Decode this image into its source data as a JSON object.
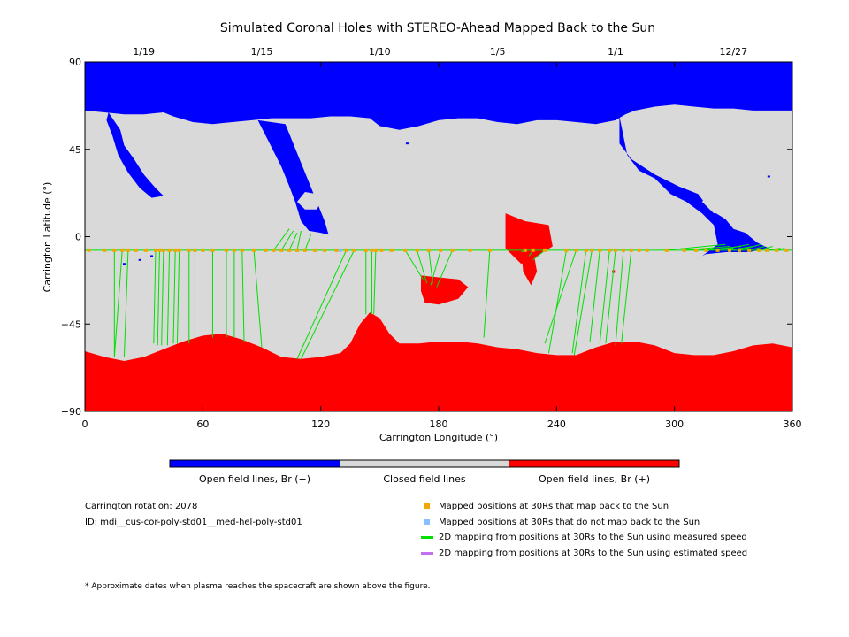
{
  "chart_data": {
    "type": "map",
    "title": "Simulated Coronal Holes with STEREO-Ahead Mapped Back to the Sun",
    "xlabel": "Carrington Longitude (°)",
    "ylabel": "Carrington Latitude (°)",
    "xlim": [
      0,
      360
    ],
    "ylim": [
      -90,
      90
    ],
    "x_ticks": [
      "0",
      "60",
      "120",
      "180",
      "240",
      "300",
      "360"
    ],
    "y_ticks": [
      "90",
      "45",
      "0",
      "−45",
      "−90"
    ],
    "top_axis": {
      "labels": [
        {
          "text": "1/19",
          "lon": 30
        },
        {
          "text": "1/15",
          "lon": 90
        },
        {
          "text": "1/10",
          "lon": 150
        },
        {
          "text": "1/5",
          "lon": 210
        },
        {
          "text": "1/1",
          "lon": 270
        },
        {
          "text": "12/27",
          "lon": 330
        }
      ]
    },
    "colors": {
      "open_negative": "#0000ff",
      "closed": "#d9d9d9",
      "open_positive": "#ff0000",
      "mapped_yes": "#f0a800",
      "mapped_no": "#87bfff",
      "measured_line": "#00e000",
      "estimated_line": "#c070f0"
    },
    "spacecraft_latitude": -7,
    "mapped_points": [
      {
        "lon": 2,
        "flat": -7,
        "slon": 2,
        "slat": -7
      },
      {
        "lon": 10,
        "flat": -7,
        "slon": 10,
        "slat": -7
      },
      {
        "lon": 15,
        "flat": -7,
        "slon": 15,
        "slat": -62
      },
      {
        "lon": 19,
        "flat": -7,
        "slon": 15,
        "slat": -62
      },
      {
        "lon": 22,
        "flat": -7,
        "slon": 20,
        "slat": -62
      },
      {
        "lon": 26,
        "flat": -7,
        "slon": 26,
        "slat": -7
      },
      {
        "lon": 31,
        "flat": -7,
        "slon": 31,
        "slat": -7
      },
      {
        "lon": 36,
        "flat": -7,
        "slon": 35,
        "slat": -55
      },
      {
        "lon": 38,
        "flat": -7,
        "slon": 37,
        "slat": -56
      },
      {
        "lon": 40,
        "flat": -7,
        "slon": 39,
        "slat": -56
      },
      {
        "lon": 43,
        "flat": -7,
        "slon": 42,
        "slat": -56
      },
      {
        "lon": 46,
        "flat": -7,
        "slon": 45,
        "slat": -55
      },
      {
        "lon": 48,
        "flat": -7,
        "slon": 47,
        "slat": -55
      },
      {
        "lon": 53,
        "flat": -7,
        "slon": 53,
        "slat": -55
      },
      {
        "lon": 56,
        "flat": -7,
        "slon": 56,
        "slat": -55
      },
      {
        "lon": 60,
        "flat": -7,
        "slon": 60,
        "slat": -7
      },
      {
        "lon": 65,
        "flat": -7,
        "slon": 65,
        "slat": -52
      },
      {
        "lon": 72,
        "flat": -7,
        "slon": 72,
        "slat": -52
      },
      {
        "lon": 76,
        "flat": -7,
        "slon": 76,
        "slat": -52
      },
      {
        "lon": 80,
        "flat": -7,
        "slon": 81,
        "slat": -54
      },
      {
        "lon": 86,
        "flat": -7,
        "slon": 90,
        "slat": -57
      },
      {
        "lon": 92,
        "flat": -7,
        "slon": 92,
        "slat": -7
      },
      {
        "lon": 96,
        "flat": -7,
        "slon": 104,
        "slat": 4
      },
      {
        "lon": 100,
        "flat": -7,
        "slon": 106,
        "slat": 3
      },
      {
        "lon": 104,
        "flat": -7,
        "slon": 108,
        "slat": 2
      },
      {
        "lon": 108,
        "flat": -7,
        "slon": 110,
        "slat": 3
      },
      {
        "lon": 112,
        "flat": -7,
        "slon": 115,
        "slat": 1
      },
      {
        "lon": 117,
        "flat": -7,
        "slon": 117,
        "slat": -7
      },
      {
        "lon": 122,
        "flat": -7,
        "slon": 122,
        "slat": -7
      },
      {
        "lon": 128,
        "flat": -7,
        "slon": 128,
        "slat": -7
      },
      {
        "lon": 133,
        "flat": -7,
        "slon": 108,
        "slat": -63
      },
      {
        "lon": 137,
        "flat": -7,
        "slon": 110,
        "slat": -63
      },
      {
        "lon": 143,
        "flat": -7,
        "slon": 143,
        "slat": -40
      },
      {
        "lon": 146,
        "flat": -7,
        "slon": 146,
        "slat": -40
      },
      {
        "lon": 148,
        "flat": -7,
        "slon": 147,
        "slat": -40
      },
      {
        "lon": 151,
        "flat": -7,
        "slon": 151,
        "slat": -7
      },
      {
        "lon": 156,
        "flat": -7,
        "slon": 156,
        "slat": -7
      },
      {
        "lon": 163,
        "flat": -7,
        "slon": 172,
        "slat": -22
      },
      {
        "lon": 169,
        "flat": -7,
        "slon": 174,
        "slat": -24
      },
      {
        "lon": 175,
        "flat": -7,
        "slon": 177,
        "slat": -24
      },
      {
        "lon": 181,
        "flat": -7,
        "slon": 176,
        "slat": -25
      },
      {
        "lon": 187,
        "flat": -7,
        "slon": 179,
        "slat": -26
      },
      {
        "lon": 196,
        "flat": -7,
        "slon": 196,
        "slat": -7
      },
      {
        "lon": 206,
        "flat": -7,
        "slon": 203,
        "slat": -52
      },
      {
        "lon": 224,
        "flat": -7,
        "slon": 222,
        "slat": -8
      },
      {
        "lon": 228,
        "flat": -7,
        "slon": 226,
        "slat": -10
      },
      {
        "lon": 234,
        "flat": -7,
        "slon": 228,
        "slat": -12
      },
      {
        "lon": 245,
        "flat": -7,
        "slon": 236,
        "slat": -60
      },
      {
        "lon": 250,
        "flat": -7,
        "slon": 234,
        "slat": -55
      },
      {
        "lon": 255,
        "flat": -7,
        "slon": 248,
        "slat": -60
      },
      {
        "lon": 258,
        "flat": -7,
        "slon": 249,
        "slat": -61
      },
      {
        "lon": 262,
        "flat": -7,
        "slon": 257,
        "slat": -54
      },
      {
        "lon": 267,
        "flat": -7,
        "slon": 262,
        "slat": -55
      },
      {
        "lon": 270,
        "flat": -7,
        "slon": 265,
        "slat": -55
      },
      {
        "lon": 274,
        "flat": -7,
        "slon": 270,
        "slat": -56
      },
      {
        "lon": 278,
        "flat": -7,
        "slon": 273,
        "slat": -55
      },
      {
        "lon": 282,
        "flat": -7,
        "slon": 282,
        "slat": -7
      },
      {
        "lon": 286,
        "flat": -7,
        "slon": 286,
        "slat": -7
      },
      {
        "lon": 296,
        "flat": -7,
        "slon": 326,
        "slat": -4
      },
      {
        "lon": 305,
        "flat": -7,
        "slon": 328,
        "slat": -5
      },
      {
        "lon": 311,
        "flat": -7,
        "slon": 330,
        "slat": -6
      },
      {
        "lon": 316,
        "flat": -7,
        "slon": 334,
        "slat": -5
      },
      {
        "lon": 322,
        "flat": -7,
        "slon": 338,
        "slat": -4
      },
      {
        "lon": 328,
        "flat": -7,
        "slon": 340,
        "slat": -5
      },
      {
        "lon": 333,
        "flat": -7,
        "slon": 344,
        "slat": -4
      },
      {
        "lon": 338,
        "flat": -7,
        "slon": 346,
        "slat": -5
      },
      {
        "lon": 343,
        "flat": -7,
        "slon": 350,
        "slat": -5
      },
      {
        "lon": 347,
        "flat": -7,
        "slon": 354,
        "slat": -6
      },
      {
        "lon": 352,
        "flat": -7,
        "slon": 356,
        "slat": -6
      },
      {
        "lon": 357,
        "flat": -7,
        "slon": 358,
        "slat": -7
      }
    ],
    "unmapped_points": [
      {
        "lon": 130,
        "lat": -7
      }
    ],
    "regions": {
      "north_negative_boundary": [
        [
          0,
          65
        ],
        [
          10,
          64
        ],
        [
          20,
          63
        ],
        [
          30,
          63
        ],
        [
          40,
          64
        ],
        [
          45,
          62
        ],
        [
          55,
          59
        ],
        [
          65,
          58
        ],
        [
          75,
          59
        ],
        [
          85,
          60
        ],
        [
          95,
          61
        ],
        [
          105,
          61
        ],
        [
          115,
          61
        ],
        [
          125,
          62
        ],
        [
          135,
          62
        ],
        [
          145,
          61
        ],
        [
          150,
          57
        ],
        [
          160,
          55
        ],
        [
          170,
          57
        ],
        [
          180,
          60
        ],
        [
          190,
          61
        ],
        [
          200,
          61
        ],
        [
          210,
          59
        ],
        [
          220,
          58
        ],
        [
          230,
          60
        ],
        [
          240,
          60
        ],
        [
          250,
          59
        ],
        [
          260,
          58
        ],
        [
          270,
          60
        ],
        [
          275,
          63
        ],
        [
          280,
          65
        ],
        [
          290,
          67
        ],
        [
          300,
          68
        ],
        [
          310,
          67
        ],
        [
          320,
          66
        ],
        [
          330,
          66
        ],
        [
          340,
          65
        ],
        [
          350,
          65
        ],
        [
          360,
          65
        ]
      ],
      "south_positive_boundary": [
        [
          0,
          -59
        ],
        [
          10,
          -62
        ],
        [
          20,
          -64
        ],
        [
          30,
          -62
        ],
        [
          40,
          -58
        ],
        [
          50,
          -54
        ],
        [
          60,
          -51
        ],
        [
          70,
          -50
        ],
        [
          80,
          -53
        ],
        [
          90,
          -57
        ],
        [
          100,
          -62
        ],
        [
          110,
          -63
        ],
        [
          120,
          -62
        ],
        [
          130,
          -60
        ],
        [
          135,
          -55
        ],
        [
          140,
          -45
        ],
        [
          145,
          -39
        ],
        [
          150,
          -42
        ],
        [
          155,
          -50
        ],
        [
          160,
          -55
        ],
        [
          170,
          -55
        ],
        [
          180,
          -54
        ],
        [
          190,
          -54
        ],
        [
          200,
          -55
        ],
        [
          210,
          -57
        ],
        [
          220,
          -58
        ],
        [
          230,
          -60
        ],
        [
          240,
          -61
        ],
        [
          250,
          -61
        ],
        [
          260,
          -57
        ],
        [
          270,
          -54
        ],
        [
          280,
          -54
        ],
        [
          290,
          -56
        ],
        [
          300,
          -60
        ],
        [
          310,
          -61
        ],
        [
          320,
          -61
        ],
        [
          330,
          -59
        ],
        [
          340,
          -56
        ],
        [
          350,
          -55
        ],
        [
          360,
          -57
        ]
      ]
    }
  },
  "colorbar": {
    "labels": [
      "Open field lines, Br (−)",
      "Closed field lines",
      "Open field lines, Br (+)"
    ]
  },
  "info": {
    "rotation": "Carrington rotation: 2078",
    "id": "ID: mdi__cus-cor-poly-std01__med-hel-poly-std01"
  },
  "legend": {
    "items": [
      {
        "label": "Mapped positions at 30Rs that map back to the Sun",
        "kind": "dot",
        "color": "#f0a800"
      },
      {
        "label": "Mapped positions at 30Rs that do not map back to the Sun",
        "kind": "dot",
        "color": "#87bfff"
      },
      {
        "label": "2D mapping from positions at 30Rs to the Sun using measured speed",
        "kind": "line",
        "color": "#00e000"
      },
      {
        "label": "2D mapping from positions at 30Rs to the Sun using estimated speed",
        "kind": "line",
        "color": "#c070f0"
      }
    ]
  },
  "footnote": "* Approximate dates when plasma reaches the spacecraft are shown above the figure."
}
